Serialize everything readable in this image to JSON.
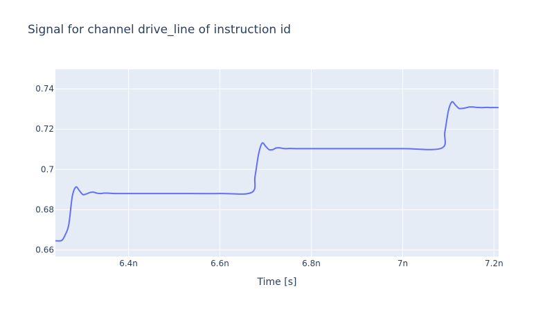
{
  "chart_data": {
    "type": "line",
    "title": "Signal for channel drive_line of instruction id",
    "xlabel": "Time [s]",
    "ylabel": "",
    "xlim": [
      6.24e-09,
      7.21e-09
    ],
    "ylim": [
      0.6567,
      0.7497
    ],
    "grid": true,
    "x_ticks": [
      {
        "value": 6.4e-09,
        "label": "6.4n"
      },
      {
        "value": 6.6e-09,
        "label": "6.6n"
      },
      {
        "value": 6.8e-09,
        "label": "6.8n"
      },
      {
        "value": 7e-09,
        "label": "7n"
      },
      {
        "value": 7.2e-09,
        "label": "7.2n"
      }
    ],
    "y_ticks": [
      {
        "value": 0.66,
        "label": "0.66"
      },
      {
        "value": 0.68,
        "label": "0.68"
      },
      {
        "value": 0.7,
        "label": "0.7"
      },
      {
        "value": 0.72,
        "label": "0.72"
      },
      {
        "value": 0.74,
        "label": "0.74"
      }
    ],
    "series": [
      {
        "color": "#636efa",
        "x": [
          6.24e-09,
          6.2538e-09,
          6.2615e-09,
          6.2692e-09,
          6.2769e-09,
          6.2846e-09,
          6.2923e-09,
          6.3e-09,
          6.3077e-09,
          6.3154e-09,
          6.3231e-09,
          6.3308e-09,
          6.3385e-09,
          6.3462e-09,
          6.3538e-09,
          6.3692e-09,
          6.3846e-09,
          6.4e-09,
          6.5e-09,
          6.6e-09,
          6.6692e-09,
          6.6769e-09,
          6.6846e-09,
          6.6923e-09,
          6.7e-09,
          6.7077e-09,
          6.7154e-09,
          6.7231e-09,
          6.7308e-09,
          6.7385e-09,
          6.7462e-09,
          6.7538e-09,
          6.7692e-09,
          6.7846e-09,
          6.8e-09,
          6.9e-09,
          7e-09,
          7.0846e-09,
          7.0923e-09,
          7.1e-09,
          7.1077e-09,
          7.1154e-09,
          7.1231e-09,
          7.1308e-09,
          7.1385e-09,
          7.1462e-09,
          7.1538e-09,
          7.1615e-09,
          7.1692e-09,
          7.1769e-09,
          7.1846e-09,
          7.1923e-09,
          7.21e-09
        ],
        "y": [
          0.6645,
          0.6647,
          0.6675,
          0.6725,
          0.6865,
          0.6912,
          0.6895,
          0.6875,
          0.6878,
          0.6885,
          0.6887,
          0.6882,
          0.688,
          0.6882,
          0.6882,
          0.688,
          0.688,
          0.688,
          0.688,
          0.688,
          0.6885,
          0.6965,
          0.7075,
          0.713,
          0.7115,
          0.7098,
          0.7098,
          0.7106,
          0.7107,
          0.7104,
          0.7103,
          0.7104,
          0.7103,
          0.7103,
          0.7103,
          0.7103,
          0.7103,
          0.7105,
          0.7185,
          0.729,
          0.7335,
          0.732,
          0.7303,
          0.7303,
          0.7306,
          0.731,
          0.731,
          0.7308,
          0.7307,
          0.7307,
          0.7308,
          0.7307,
          0.7307
        ]
      }
    ]
  }
}
